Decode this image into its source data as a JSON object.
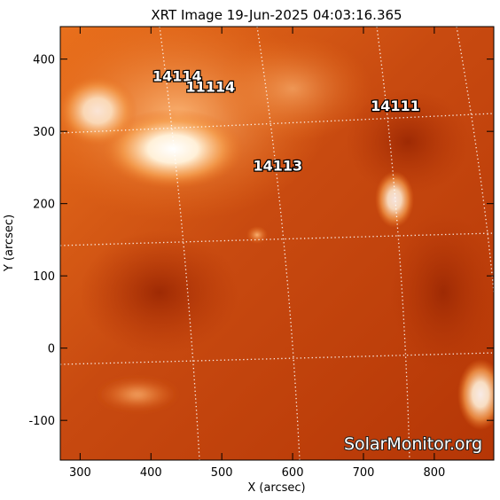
{
  "chart_data": {
    "type": "image",
    "title": "XRT Image 19-Jun-2025 04:03:16.365",
    "xlabel": "X (arcsec)",
    "ylabel": "Y (arcsec)",
    "xlim": [
      272,
      884
    ],
    "ylim": [
      -155,
      445
    ],
    "xticks": [
      300,
      400,
      500,
      600,
      700,
      800
    ],
    "yticks": [
      -100,
      0,
      100,
      200,
      300,
      400
    ],
    "annotations": [
      {
        "text": "14114",
        "x": 437,
        "y": 377
      },
      {
        "text": "11114",
        "x": 484,
        "y": 362
      },
      {
        "text": "14111",
        "x": 745,
        "y": 336
      },
      {
        "text": "14113",
        "x": 579,
        "y": 253
      }
    ],
    "watermark": "SolarMonitor.org"
  }
}
